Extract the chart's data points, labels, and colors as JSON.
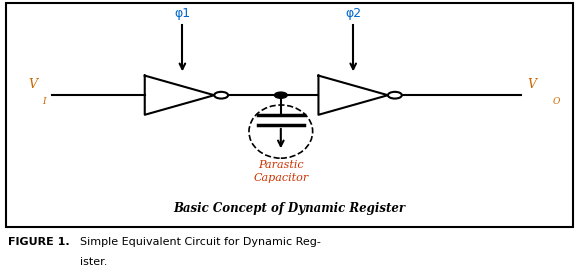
{
  "bg_color": "#ffffff",
  "circuit_color": "#000000",
  "phi_color": "#0066cc",
  "vi_color": "#cc6600",
  "vo_color": "#cc6600",
  "parastic_color": "#cc3300",
  "caption_color": "#000000",
  "fig_label_color": "#000000",
  "inner_caption": "Basic Concept of Dynamic Register",
  "phi1_label": "φ1",
  "phi2_label": "φ2"
}
